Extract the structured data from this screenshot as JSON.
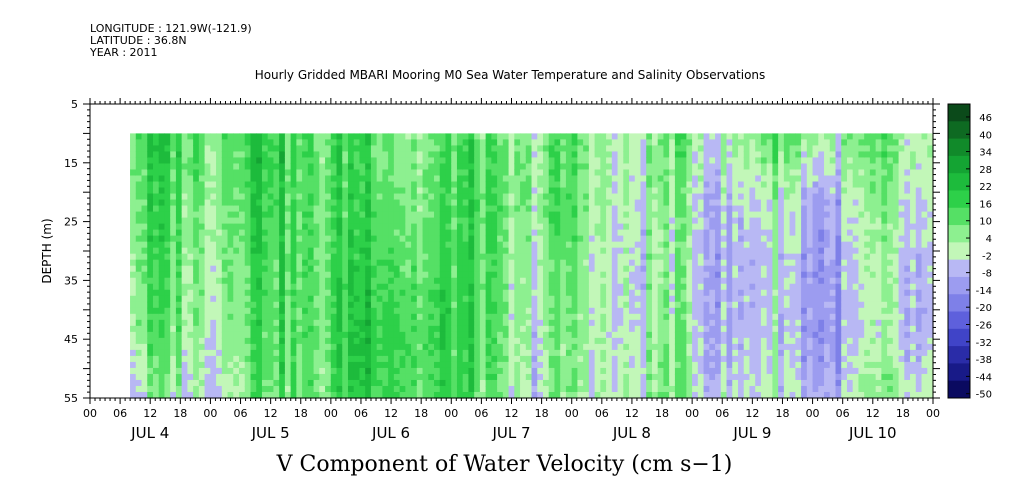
{
  "header": {
    "longitude": "LONGITUDE : 121.9W(-121.9)",
    "latitude": "LATITUDE : 36.8N",
    "year": "YEAR : 2011"
  },
  "chart_data": {
    "type": "heatmap",
    "title": "Hourly Gridded MBARI Mooring M0 Sea Water Temperature and Salinity Observations",
    "bottom_title": "V Component of Water Velocity (cm s−1)",
    "ylabel": "DEPTH (m)",
    "ylim": [
      5,
      55
    ],
    "y_inverted": true,
    "y_ticks": [
      5,
      15,
      25,
      35,
      45,
      55
    ],
    "x_hour_ticks": [
      "00",
      "06",
      "12",
      "18",
      "00",
      "06",
      "12",
      "18",
      "00",
      "06",
      "12",
      "18",
      "00",
      "06",
      "12",
      "18",
      "00",
      "06",
      "12",
      "18",
      "00",
      "06",
      "12",
      "18",
      "00",
      "06",
      "12",
      "18",
      "00"
    ],
    "x_day_labels": [
      "JUL  4",
      "JUL  5",
      "JUL  6",
      "JUL  7",
      "JUL  8",
      "JUL  9",
      "JUL 10"
    ],
    "data_extent": {
      "depth_min": 10,
      "depth_max": 55,
      "start": "JUL 4 08:00",
      "end": "JUL 11 00:00"
    },
    "colorbar_levels": [
      "46",
      "40",
      "34",
      "28",
      "22",
      "16",
      "10",
      "4",
      "-2",
      "-8",
      "-14",
      "-20",
      "-26",
      "-32",
      "-38",
      "-44",
      "-50"
    ],
    "colorbar_colors": [
      "#0b4a1a",
      "#0e6a22",
      "#118a2a",
      "#14a433",
      "#1dbb3c",
      "#2dd049",
      "#55e065",
      "#8df090",
      "#c2f7b8",
      "#b8b8f4",
      "#9c9cf0",
      "#7e80e8",
      "#5e60dc",
      "#4044c8",
      "#2a2ca8",
      "#181a88",
      "#0a0a60"
    ],
    "values_cm_s": {
      "note_depths_m": [
        12.5,
        22.5,
        32.5,
        42.5,
        52.5
      ],
      "days": [
        "JUL 4 PM",
        "JUL 5",
        "JUL 6",
        "JUL 7",
        "JUL 8",
        "JUL 9",
        "JUL 10"
      ],
      "grid": [
        [
          14,
          18,
          12,
          8,
          4,
          10,
          2
        ],
        [
          10,
          16,
          14,
          10,
          2,
          -4,
          0
        ],
        [
          8,
          14,
          18,
          6,
          0,
          -6,
          -4
        ],
        [
          6,
          12,
          22,
          4,
          2,
          -8,
          -6
        ],
        [
          -4,
          10,
          20,
          2,
          4,
          -4,
          2
        ]
      ]
    }
  }
}
